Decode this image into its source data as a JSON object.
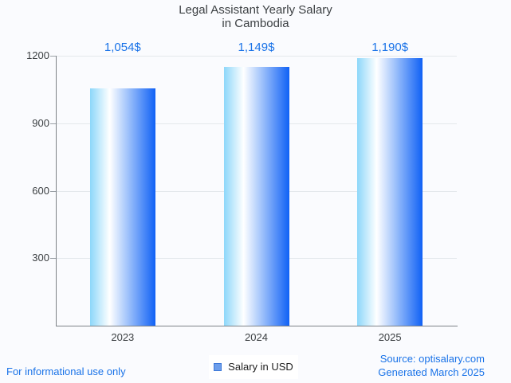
{
  "title": {
    "line1": "Legal Assistant Yearly Salary",
    "line2": "in Cambodia"
  },
  "chart_data": {
    "type": "bar",
    "title": "Legal Assistant Yearly Salary in Cambodia",
    "categories": [
      "2023",
      "2024",
      "2025"
    ],
    "values": [
      1054,
      1149,
      1190
    ],
    "value_labels": [
      "1,054$",
      "1,149$",
      "1,190$"
    ],
    "series_name": "Salary in USD",
    "xlabel": "",
    "ylabel": "",
    "ylim": [
      0,
      1200
    ],
    "yticks": [
      300,
      600,
      900,
      1200
    ],
    "grid": true,
    "legend_position": "bottom",
    "bar_gradient": [
      "#8dd7fa",
      "#ffffff",
      "#9fc2fb",
      "#1061f5"
    ]
  },
  "footer": {
    "disclaimer": "For informational use only",
    "legend_label": "Salary in USD",
    "source_line1": "Source: optisalary.com",
    "source_line2": "Generated March 2025"
  },
  "colors": {
    "accent_blue": "#1a73e8",
    "title_text": "#3c4043",
    "axis_line": "#7d8287",
    "gridline": "#e4e8ec",
    "tick_text": "#3c4043",
    "legend_swatch_fill": "#6d9eeb",
    "legend_swatch_border": "#3c78d8",
    "background": "#fafbfe"
  }
}
